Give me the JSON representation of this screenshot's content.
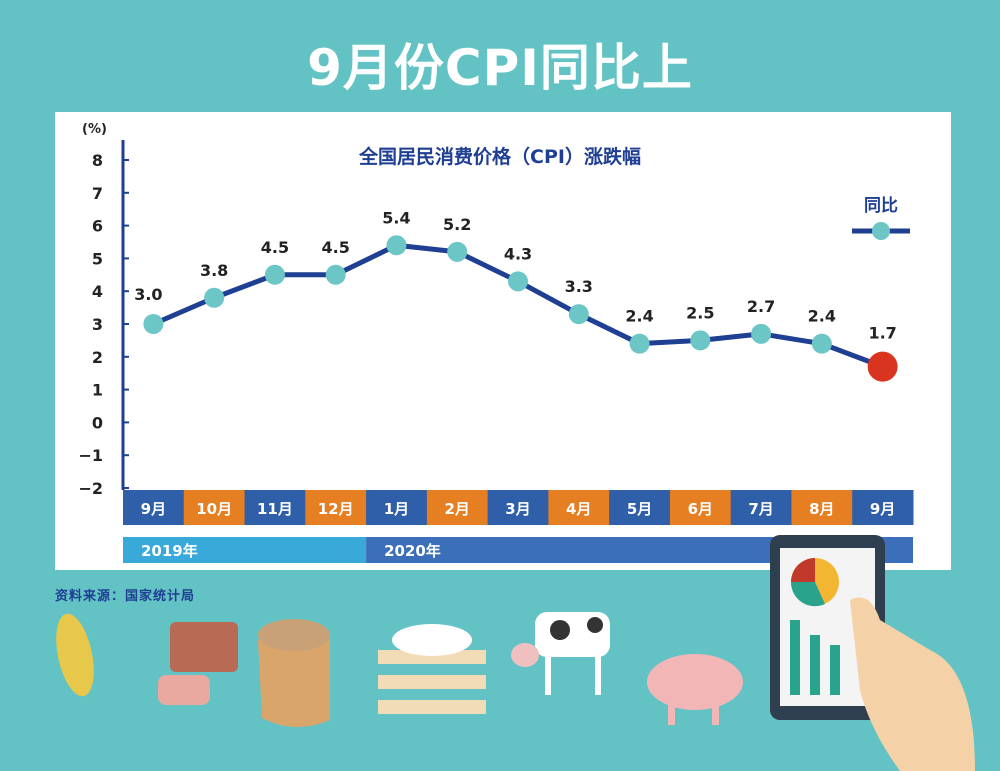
{
  "header": {
    "title": "9月份CPI同比上"
  },
  "source": "资料来源：国家统计局",
  "colors": {
    "background": "#63c3c4",
    "line": "#1f3f93",
    "marker": "#6cc6c6",
    "highlight": "#d9341f",
    "month_blue": "#2f5fa8",
    "month_orange": "#e67e22",
    "year_2019": "#38a9d9",
    "year_2020": "#3b6fba"
  },
  "chart_data": {
    "type": "line",
    "title": "全国居民消费价格（CPI）涨跌幅",
    "ylabel": "(%)",
    "ylim": [
      -2,
      8
    ],
    "yticks": [
      "8",
      "7",
      "6",
      "5",
      "4",
      "3",
      "2",
      "1",
      "0",
      "−1",
      "−2"
    ],
    "yticks_values": [
      8,
      7,
      6,
      5,
      4,
      3,
      2,
      1,
      0,
      -1,
      -2
    ],
    "grid": false,
    "legend_position": "top-right",
    "categories": [
      "9月",
      "10月",
      "11月",
      "12月",
      "1月",
      "2月",
      "3月",
      "4月",
      "5月",
      "6月",
      "7月",
      "8月",
      "9月"
    ],
    "years": [
      {
        "label": "2019年",
        "span": 4
      },
      {
        "label": "2020年",
        "span": 9
      }
    ],
    "series": [
      {
        "name": "同比",
        "values": [
          3.0,
          3.8,
          4.5,
          4.5,
          5.4,
          5.2,
          4.3,
          3.3,
          2.4,
          2.5,
          2.7,
          2.4,
          1.7
        ],
        "labels": [
          "3.0",
          "3.8",
          "4.5",
          "4.5",
          "5.4",
          "5.2",
          "4.3",
          "3.3",
          "2.4",
          "2.5",
          "2.7",
          "2.4",
          "1.7"
        ]
      }
    ]
  },
  "illustrations": [
    "corn-icon",
    "bacon-icon",
    "flour-sack-icon",
    "eggs-icon",
    "cow-icon",
    "pig-icon",
    "tablet-chart-icon",
    "hand-icon"
  ]
}
